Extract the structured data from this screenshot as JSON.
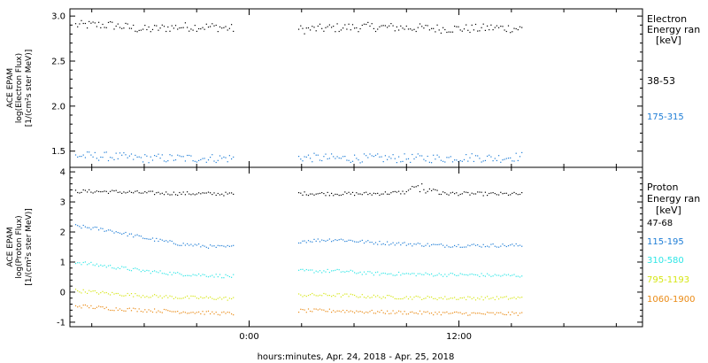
{
  "xlabel": "hours:minutes, Apr. 24, 2018 - Apr. 25, 2018",
  "x_ticks": [
    {
      "hour": 0,
      "label": "0:00"
    },
    {
      "hour": 12,
      "label": "12:00"
    }
  ],
  "x_range_hours": [
    -10.25,
    22.5
  ],
  "data_gap_hours": [
    -0.9,
    2.8
  ],
  "data_end_hour": 15.6,
  "chart_data": [
    {
      "type": "scatter",
      "panel": "electron",
      "ylabel_lines": [
        "ACE EPAM",
        "log(Electron Flux)",
        "[1/(cm²s ster MeV)]"
      ],
      "ylim": [
        1.32,
        3.08
      ],
      "y_ticks": [
        1.5,
        2.0,
        2.5,
        3.0
      ],
      "y_tick_labels": [
        "1.5",
        "2.0",
        "2.5",
        "3.0"
      ],
      "legend_title": [
        "Electron",
        "Energy ran",
        "[keV]"
      ],
      "series": [
        {
          "name": "38-53",
          "color": "#000000",
          "values": [
            2.9,
            2.9,
            2.85,
            2.88,
            2.88,
            2.86,
            2.85,
            2.87,
            2.88,
            2.87,
            2.86,
            2.86,
            2.87,
            2.86
          ]
        },
        {
          "name": "175-315",
          "color": "#1e7dd6",
          "values": [
            1.45,
            1.44,
            1.42,
            1.42,
            1.42,
            1.42,
            1.43,
            1.42,
            1.42,
            1.42,
            1.42,
            1.43,
            1.42,
            1.44
          ]
        }
      ]
    },
    {
      "type": "scatter",
      "panel": "proton",
      "ylabel_lines": [
        "ACE EPAM",
        "log(Proton Flux)",
        "[1/(cm²s ster MeV)]"
      ],
      "ylim": [
        -1.15,
        4.15
      ],
      "y_ticks": [
        -1,
        0,
        1,
        2,
        3,
        4
      ],
      "y_tick_labels": [
        "-1",
        "0",
        "1",
        "2",
        "3",
        "4"
      ],
      "legend_title": [
        "Proton",
        "Energy ran",
        "[keV]"
      ],
      "series": [
        {
          "name": "47-68",
          "color": "#000000",
          "values": [
            3.35,
            3.34,
            3.3,
            3.28,
            3.27,
            3.26,
            3.28,
            3.27,
            3.27,
            3.32,
            3.28,
            3.27,
            3.26,
            3.26
          ]
        },
        {
          "name": "115-195",
          "color": "#1e7dd6",
          "values": [
            2.2,
            2.05,
            1.8,
            1.6,
            1.5,
            1.5,
            1.7,
            1.75,
            1.65,
            1.6,
            1.55,
            1.55,
            1.55,
            1.55
          ]
        },
        {
          "name": "310-580",
          "color": "#2ee6e6",
          "values": [
            1.0,
            0.85,
            0.7,
            0.6,
            0.55,
            0.52,
            0.7,
            0.7,
            0.62,
            0.6,
            0.58,
            0.57,
            0.55,
            0.55
          ]
        },
        {
          "name": "795-1193",
          "color": "#d6e614",
          "values": [
            0.05,
            -0.05,
            -0.12,
            -0.18,
            -0.2,
            -0.22,
            -0.1,
            -0.1,
            -0.15,
            -0.18,
            -0.2,
            -0.2,
            -0.2,
            -0.2
          ]
        },
        {
          "name": "1060-1900",
          "color": "#ea8a14",
          "values": [
            -0.45,
            -0.55,
            -0.6,
            -0.65,
            -0.7,
            -0.72,
            -0.62,
            -0.62,
            -0.66,
            -0.68,
            -0.7,
            -0.72,
            -0.72,
            -0.72
          ]
        }
      ],
      "series_x_hours": [
        -10.0,
        -8.0,
        -6.0,
        -4.0,
        -2.0,
        -1.0,
        3.0,
        5.0,
        7.0,
        9.0,
        11.0,
        13.0,
        14.0,
        15.6
      ]
    }
  ]
}
